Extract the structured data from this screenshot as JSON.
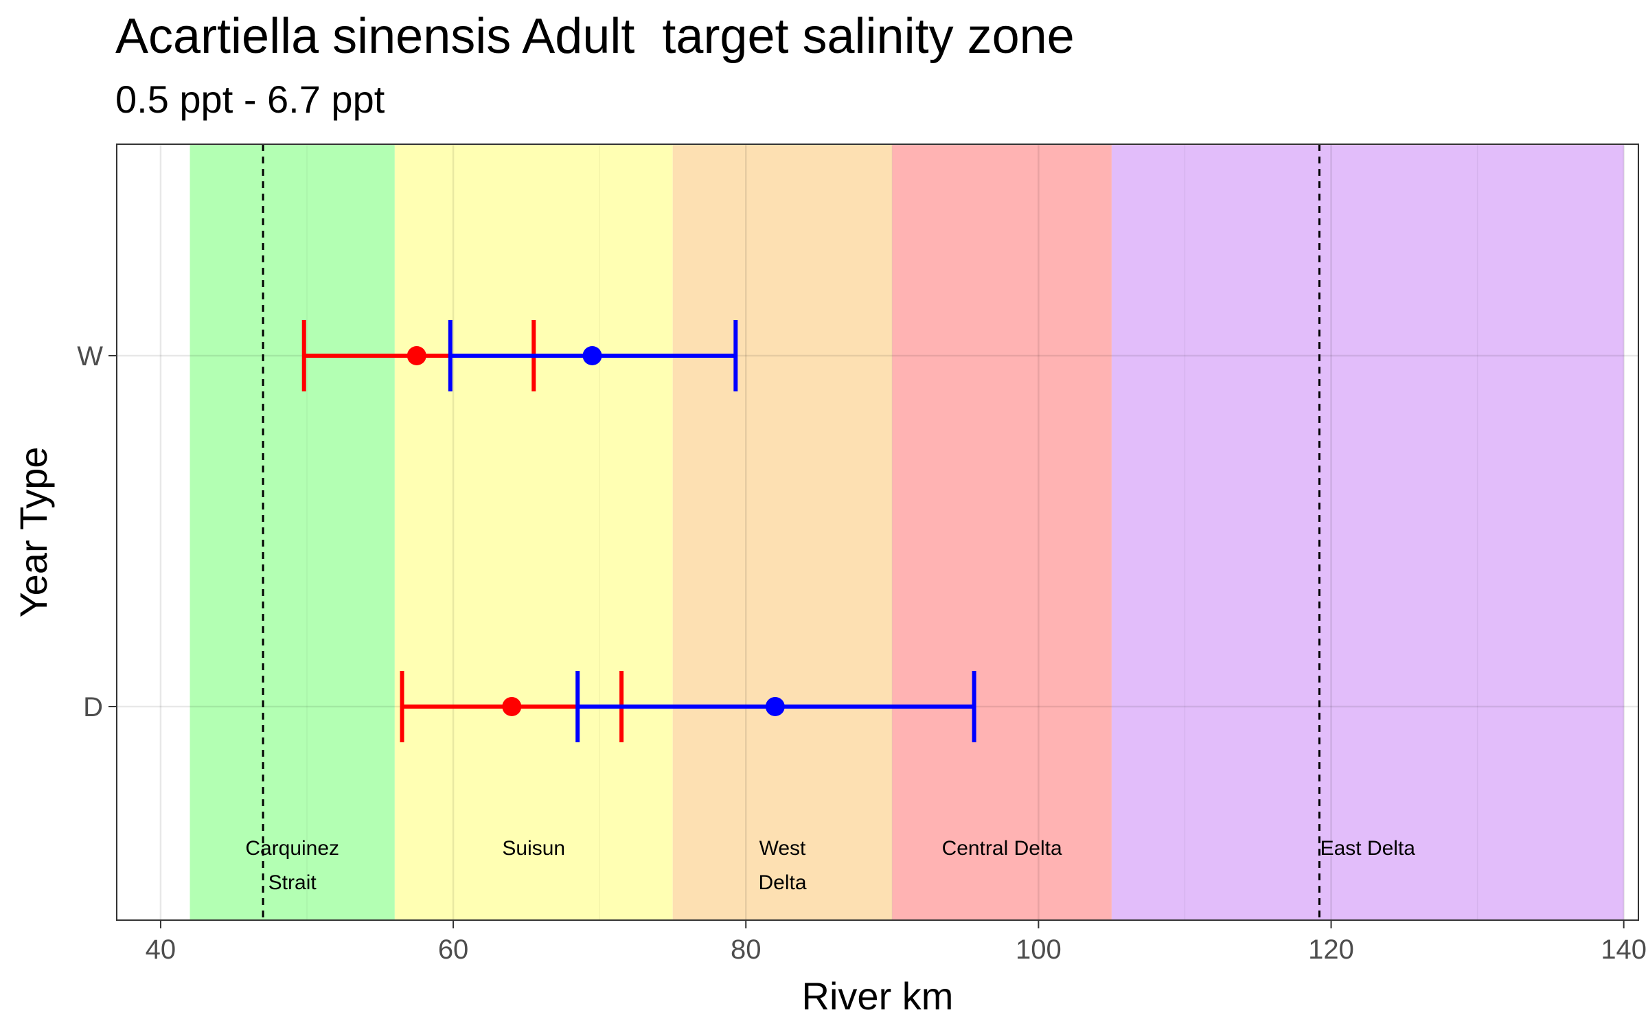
{
  "chart_data": {
    "type": "errorbar",
    "title": "Acartiella sinensis Adult  target salinity zone",
    "subtitle": "0.5 ppt - 6.7 ppt",
    "xlabel": "River km",
    "ylabel": "Year Type",
    "xlim": [
      37,
      141
    ],
    "x_ticks": [
      40,
      60,
      80,
      100,
      120,
      140
    ],
    "categories": [
      "D",
      "W"
    ],
    "grid": true,
    "regions": [
      {
        "label": [
          "Carquinez",
          "Strait"
        ],
        "from": 42,
        "to": 56,
        "color": "#b3ffb3"
      },
      {
        "label": [
          "Suisun"
        ],
        "from": 56,
        "to": 75,
        "color": "#ffffb3"
      },
      {
        "label": [
          "West",
          "Delta"
        ],
        "from": 75,
        "to": 90,
        "color": "#fde0b2"
      },
      {
        "label": [
          "Central Delta"
        ],
        "from": 90,
        "to": 105,
        "color": "#ffb3b3"
      },
      {
        "label": [
          "East Delta"
        ],
        "from": 105,
        "to": 140,
        "color": "#e2bdfa"
      }
    ],
    "reference_lines": [
      47,
      119.2
    ],
    "series": [
      {
        "color": "#ff0000",
        "points": [
          {
            "category": "W",
            "x": 57.5,
            "low": 49.8,
            "high": 65.5
          },
          {
            "category": "D",
            "x": 64.0,
            "low": 56.5,
            "high": 71.5
          }
        ]
      },
      {
        "color": "#0000ff",
        "points": [
          {
            "category": "W",
            "x": 69.5,
            "low": 59.8,
            "high": 79.3
          },
          {
            "category": "D",
            "x": 82.0,
            "low": 68.5,
            "high": 95.6
          }
        ]
      }
    ]
  }
}
